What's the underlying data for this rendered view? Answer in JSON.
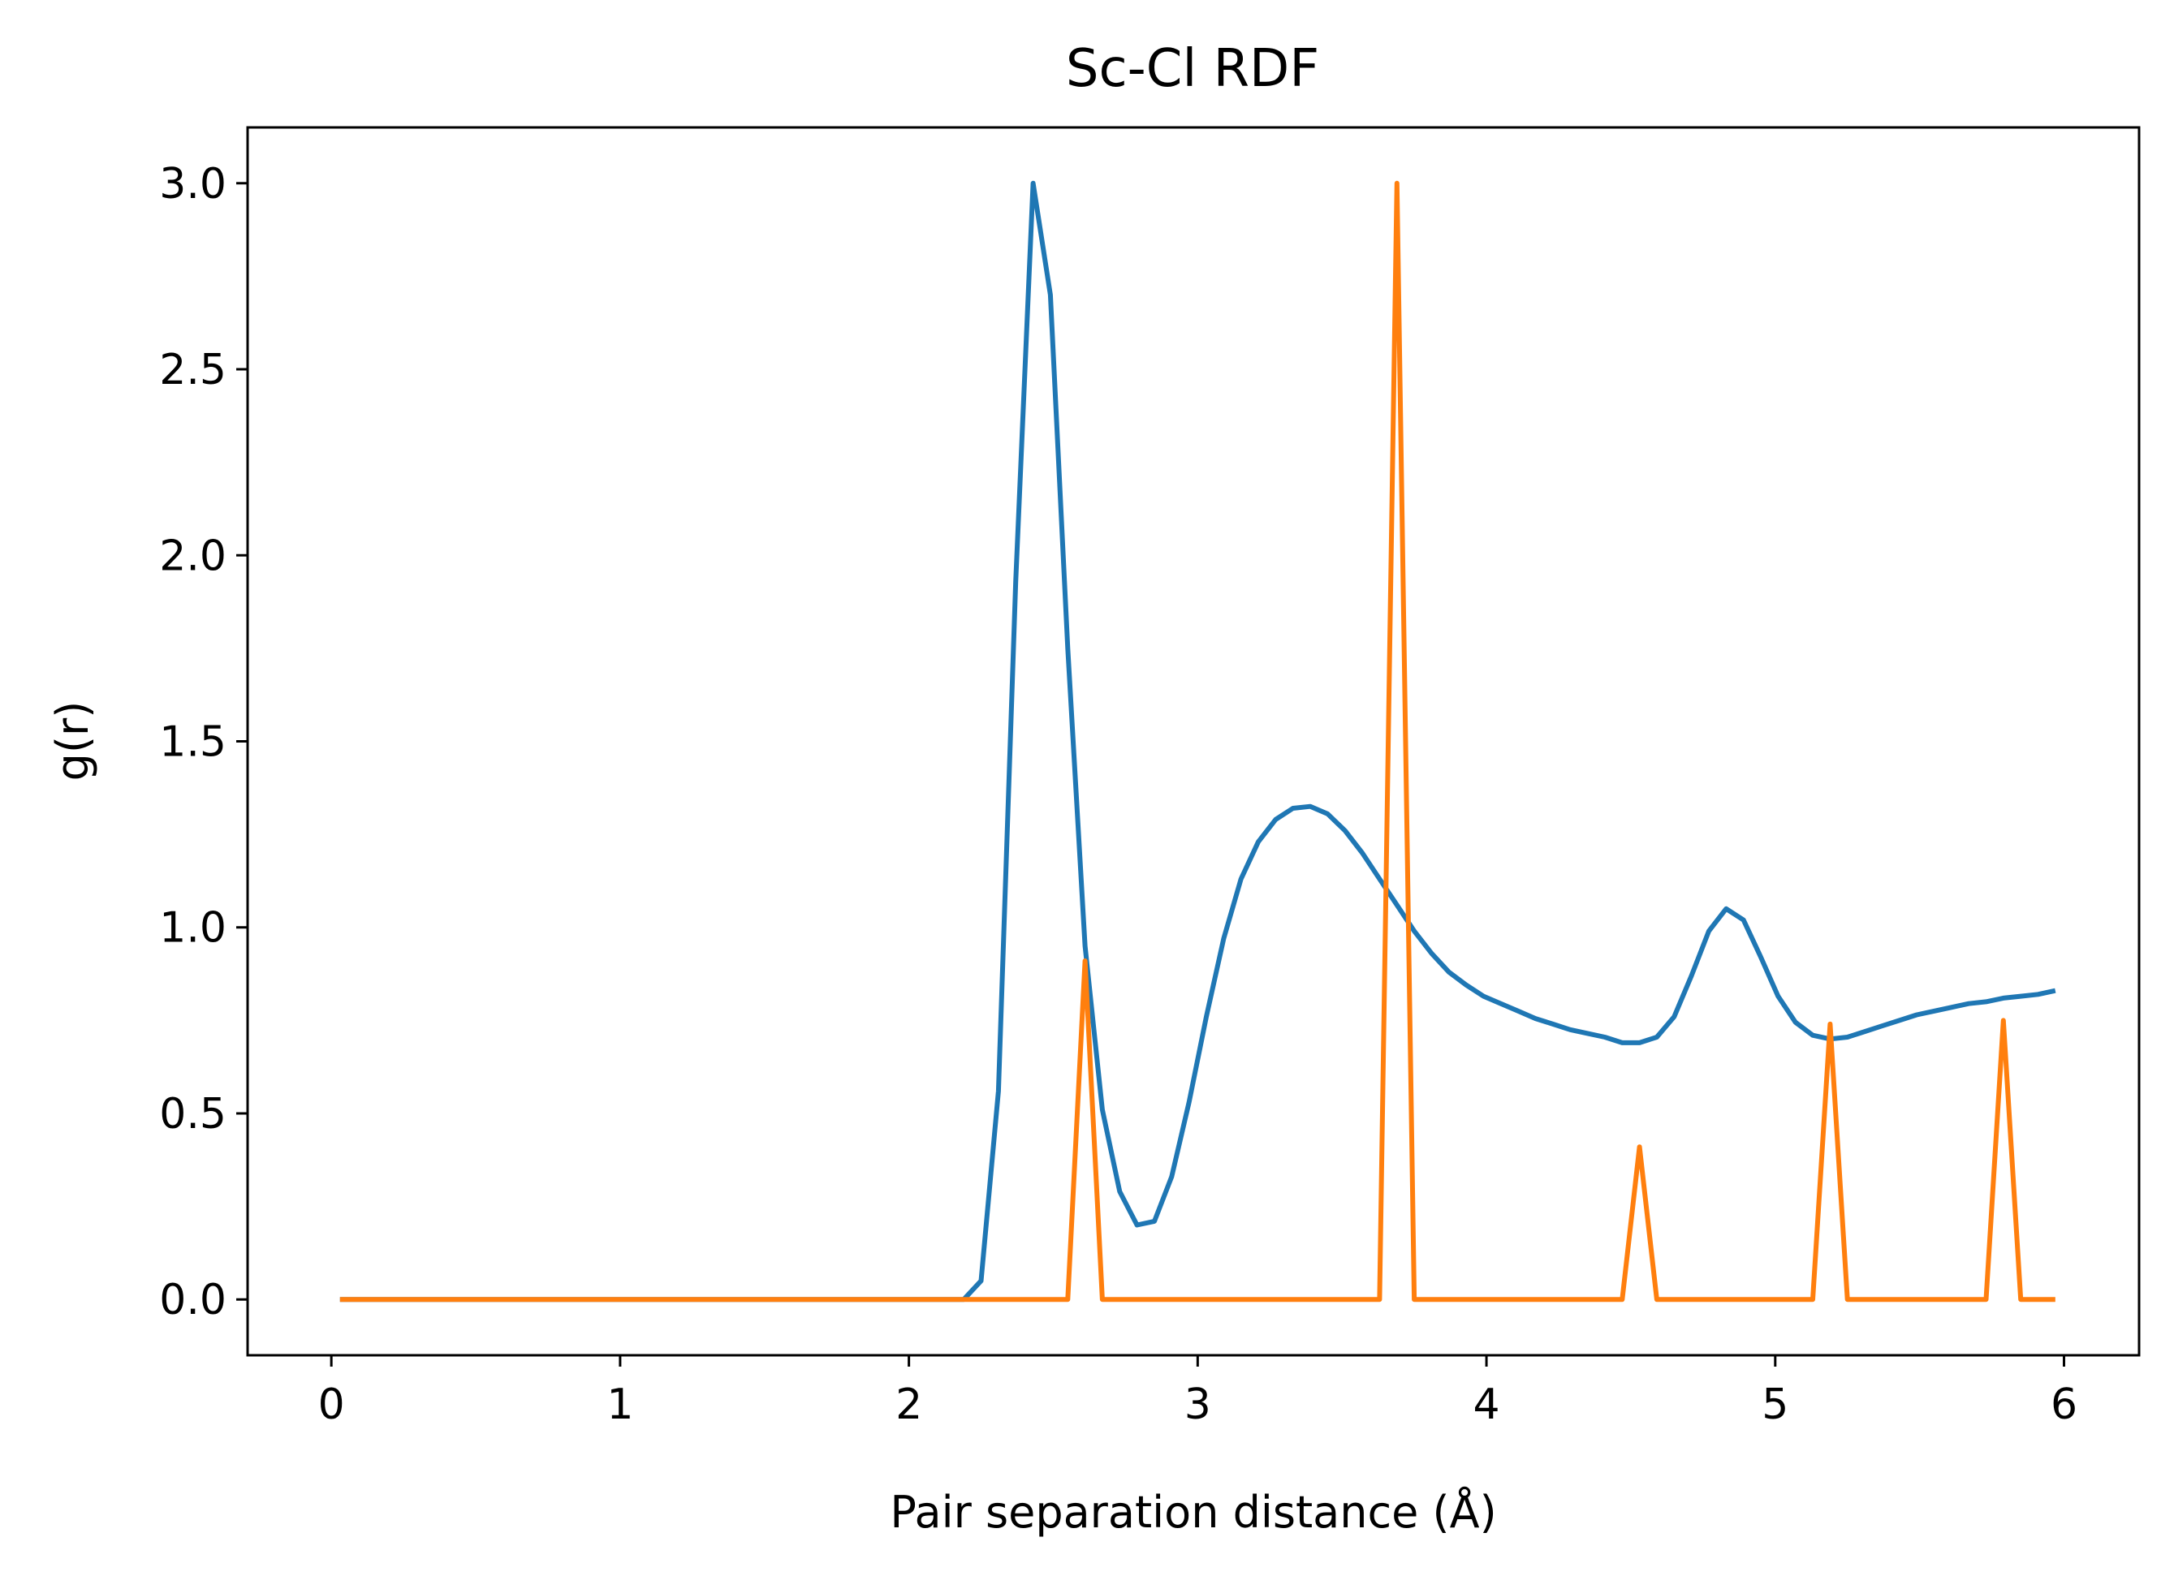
{
  "chart_data": {
    "type": "line",
    "title": "Sc-Cl RDF",
    "xlabel": "Pair separation distance (Å)",
    "ylabel": "g(r)",
    "xlim": [
      -0.29,
      6.26
    ],
    "ylim": [
      -0.15,
      3.15
    ],
    "xticks": [
      0,
      1,
      2,
      3,
      4,
      5,
      6
    ],
    "xtick_labels": [
      "0",
      "1",
      "2",
      "3",
      "4",
      "5",
      "6"
    ],
    "yticks": [
      0.0,
      0.5,
      1.0,
      1.5,
      2.0,
      2.5,
      3.0
    ],
    "ytick_labels": [
      "0.0",
      "0.5",
      "1.0",
      "1.5",
      "2.0",
      "2.5",
      "3.0"
    ],
    "grid": false,
    "legend": false,
    "series": [
      {
        "color": "#1f77b4",
        "x": [
          0.03,
          2.19,
          2.25,
          2.31,
          2.37,
          2.43,
          2.49,
          2.55,
          2.61,
          2.67,
          2.73,
          2.79,
          2.85,
          2.91,
          2.97,
          3.03,
          3.09,
          3.15,
          3.21,
          3.27,
          3.33,
          3.39,
          3.45,
          3.51,
          3.57,
          3.63,
          3.69,
          3.75,
          3.81,
          3.87,
          3.93,
          3.99,
          4.05,
          4.11,
          4.17,
          4.23,
          4.29,
          4.35,
          4.41,
          4.47,
          4.53,
          4.59,
          4.65,
          4.71,
          4.77,
          4.83,
          4.89,
          4.95,
          5.01,
          5.07,
          5.13,
          5.19,
          5.25,
          5.31,
          5.37,
          5.43,
          5.49,
          5.55,
          5.61,
          5.67,
          5.73,
          5.79,
          5.85,
          5.91,
          5.97
        ],
        "y": [
          0.0,
          0.0,
          0.05,
          0.56,
          1.93,
          3.0,
          2.7,
          1.75,
          0.95,
          0.51,
          0.29,
          0.2,
          0.21,
          0.33,
          0.53,
          0.76,
          0.97,
          1.13,
          1.23,
          1.29,
          1.32,
          1.325,
          1.305,
          1.26,
          1.2,
          1.13,
          1.06,
          0.99,
          0.93,
          0.88,
          0.845,
          0.815,
          0.795,
          0.775,
          0.755,
          0.74,
          0.725,
          0.715,
          0.705,
          0.69,
          0.69,
          0.705,
          0.76,
          0.87,
          0.99,
          1.05,
          1.02,
          0.92,
          0.815,
          0.745,
          0.71,
          0.7,
          0.705,
          0.72,
          0.735,
          0.75,
          0.765,
          0.775,
          0.785,
          0.795,
          0.8,
          0.81,
          0.815,
          0.82,
          0.83
        ]
      },
      {
        "color": "#ff7f0e",
        "x": [
          0.03,
          2.55,
          2.61,
          2.67,
          3.63,
          3.69,
          3.75,
          4.47,
          4.53,
          4.59,
          5.13,
          5.19,
          5.25,
          5.73,
          5.79,
          5.85,
          5.97
        ],
        "y": [
          0.0,
          0.0,
          0.91,
          0.0,
          0.0,
          3.0,
          0.0,
          0.0,
          0.41,
          0.0,
          0.0,
          0.74,
          0.0,
          0.0,
          0.75,
          0.0,
          0.0
        ]
      }
    ]
  }
}
